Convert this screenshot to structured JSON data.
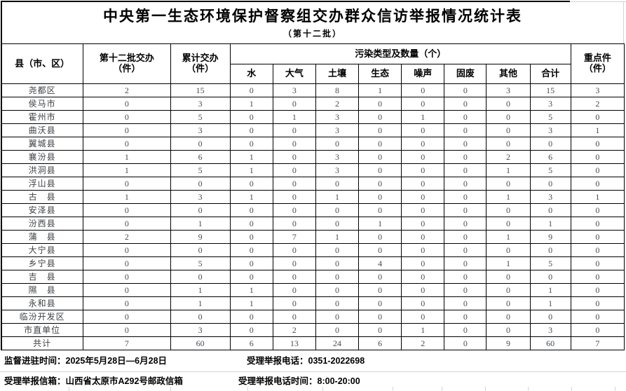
{
  "title": "中央第一生态环境保护督察组交办群众信访举报情况统计表",
  "subtitle": "（第十二批）",
  "table": {
    "headers": {
      "region": "县（市、区）",
      "batch": "第十二批交办\n（件）",
      "cumulative": "累计交办\n（件）",
      "pollution_group": "污染类型及数量（个）",
      "pollution_types": [
        "水",
        "大气",
        "土壤",
        "生态",
        "噪声",
        "固废",
        "其他",
        "合计"
      ],
      "key_cases": "重点件\n（件）"
    },
    "rows": [
      {
        "name": "尧都区",
        "values": [
          2,
          15,
          0,
          3,
          8,
          1,
          0,
          0,
          3,
          15,
          3
        ]
      },
      {
        "name": "侯马市",
        "values": [
          0,
          3,
          1,
          0,
          2,
          0,
          0,
          0,
          0,
          3,
          2
        ]
      },
      {
        "name": "霍州市",
        "values": [
          0,
          5,
          0,
          1,
          3,
          0,
          1,
          0,
          0,
          5,
          0
        ]
      },
      {
        "name": "曲沃县",
        "values": [
          0,
          3,
          0,
          0,
          3,
          0,
          0,
          0,
          0,
          3,
          1
        ]
      },
      {
        "name": "翼城县",
        "values": [
          0,
          0,
          0,
          0,
          0,
          0,
          0,
          0,
          0,
          0,
          0
        ]
      },
      {
        "name": "襄汾县",
        "values": [
          1,
          6,
          1,
          0,
          3,
          0,
          0,
          0,
          2,
          6,
          0
        ]
      },
      {
        "name": "洪洞县",
        "values": [
          1,
          5,
          1,
          0,
          3,
          0,
          0,
          0,
          1,
          5,
          0
        ]
      },
      {
        "name": "浮山县",
        "values": [
          0,
          0,
          0,
          0,
          0,
          0,
          0,
          0,
          0,
          0,
          0
        ]
      },
      {
        "name": "古　县",
        "values": [
          1,
          3,
          1,
          0,
          1,
          0,
          0,
          0,
          1,
          3,
          1
        ]
      },
      {
        "name": "安泽县",
        "values": [
          0,
          0,
          0,
          0,
          0,
          0,
          0,
          0,
          0,
          0,
          0
        ]
      },
      {
        "name": "汾西县",
        "values": [
          0,
          1,
          0,
          0,
          0,
          1,
          0,
          0,
          0,
          1,
          0
        ]
      },
      {
        "name": "蒲　县",
        "values": [
          2,
          9,
          0,
          7,
          1,
          0,
          0,
          0,
          1,
          9,
          0
        ]
      },
      {
        "name": "大宁县",
        "values": [
          0,
          0,
          0,
          0,
          0,
          0,
          0,
          0,
          0,
          0,
          0
        ]
      },
      {
        "name": "乡宁县",
        "values": [
          0,
          5,
          0,
          0,
          0,
          4,
          0,
          0,
          1,
          5,
          0
        ]
      },
      {
        "name": "吉　县",
        "values": [
          0,
          0,
          0,
          0,
          0,
          0,
          0,
          0,
          0,
          0,
          0
        ]
      },
      {
        "name": "隰　县",
        "values": [
          0,
          1,
          1,
          0,
          0,
          0,
          0,
          0,
          0,
          1,
          0
        ]
      },
      {
        "name": "永和县",
        "values": [
          0,
          1,
          1,
          0,
          0,
          0,
          0,
          0,
          0,
          1,
          0
        ]
      },
      {
        "name": "临汾开发区",
        "values": [
          0,
          0,
          0,
          0,
          0,
          0,
          0,
          0,
          0,
          0,
          0
        ]
      },
      {
        "name": "市直单位",
        "values": [
          0,
          3,
          0,
          2,
          0,
          0,
          1,
          0,
          0,
          3,
          0
        ]
      }
    ],
    "total_row": {
      "name": "共计",
      "values": [
        7,
        60,
        6,
        13,
        24,
        6,
        2,
        0,
        9,
        60,
        7
      ]
    }
  },
  "footer": {
    "supervision": {
      "label": "监督进驻时间：",
      "value": "2025年5月28日—6月28日"
    },
    "hotline": {
      "label": "受理举报电话：",
      "value": "0351-2022698"
    },
    "mailbox": {
      "label": "受理举报信箱：",
      "value": "山西省太原市A292号邮政信箱"
    },
    "hotline_hours": {
      "label": "受理举报电话时间：",
      "value": "8:00-20:00"
    }
  },
  "colors": {
    "border": "#000000",
    "data_text": "#434c55",
    "name_text": "#3d4145",
    "grid_faint": "#d4d4d4"
  }
}
